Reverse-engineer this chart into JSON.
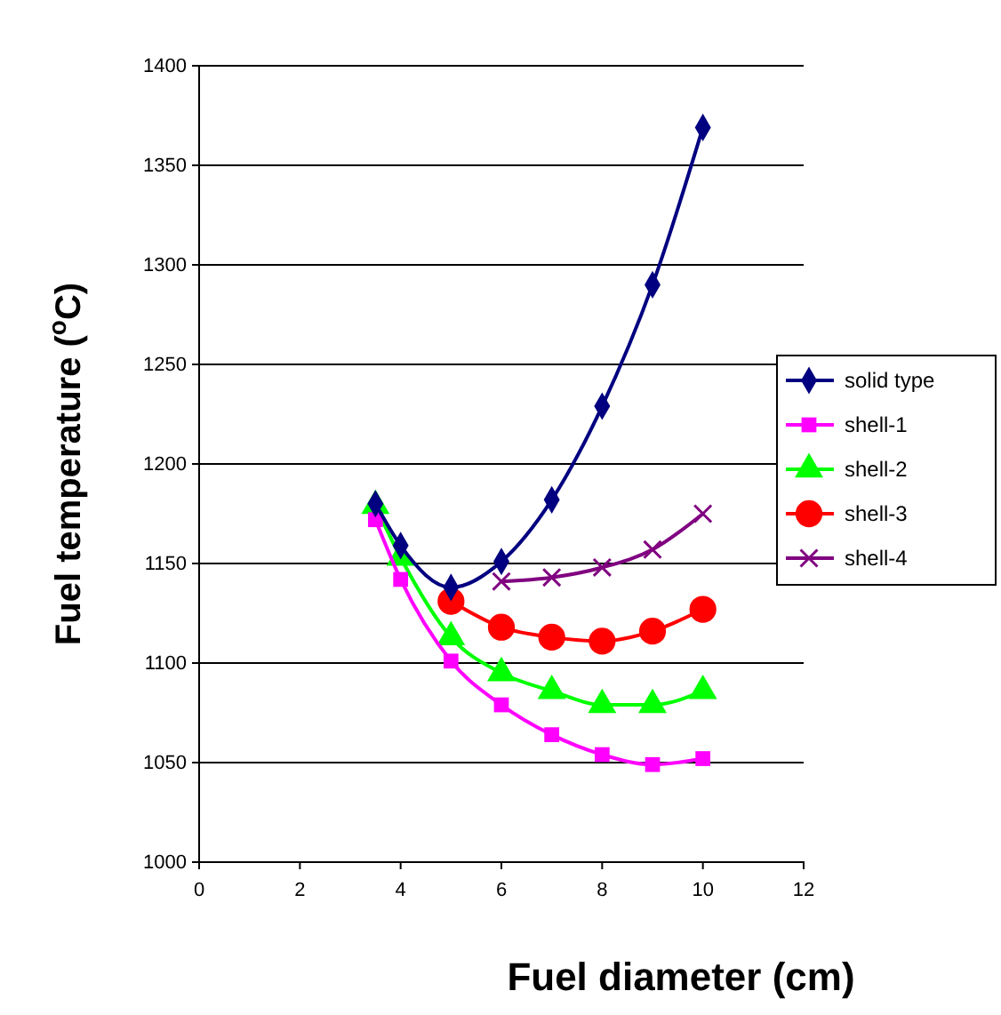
{
  "chart_data": {
    "type": "line",
    "xlabel": "Fuel diameter (cm)",
    "ylabel": "Fuel temperature ($^{o}$C)",
    "xlim": [
      0,
      12
    ],
    "xticks": [
      0,
      2,
      4,
      6,
      8,
      10,
      12
    ],
    "ylim": [
      1000,
      1400
    ],
    "yticks": [
      1000,
      1050,
      1100,
      1150,
      1200,
      1250,
      1300,
      1350,
      1400
    ],
    "grid": "y",
    "legend": "right",
    "line_style": "solid",
    "series": [
      {
        "name": "solid type",
        "color": "#000080",
        "marker": "diamond",
        "x": [
          3.5,
          4,
          5,
          6,
          7,
          8,
          9,
          10
        ],
        "values": [
          1180,
          1159,
          1138,
          1151,
          1182,
          1229,
          1290,
          1369
        ]
      },
      {
        "name": "shell-1",
        "color": "#ff00ff",
        "marker": "square",
        "x": [
          3.5,
          4,
          5,
          6,
          7,
          8,
          9,
          10
        ],
        "values": [
          1172,
          1142,
          1101,
          1079,
          1064,
          1054,
          1049,
          1052
        ]
      },
      {
        "name": "shell-2",
        "color": "#00ff00",
        "marker": "triangle",
        "x": [
          3.5,
          4,
          5,
          6,
          7,
          8,
          9,
          10
        ],
        "values": [
          1179,
          1153,
          1113,
          1095,
          1086,
          1079,
          1079,
          1086
        ]
      },
      {
        "name": "shell-3",
        "color": "#ff0000",
        "marker": "circle",
        "x": [
          5,
          6,
          7,
          8,
          9,
          10
        ],
        "values": [
          1131,
          1118,
          1113,
          1111,
          1116,
          1127
        ]
      },
      {
        "name": "shell-4",
        "color": "#800080",
        "marker": "cross",
        "x": [
          6,
          7,
          8,
          9,
          10
        ],
        "values": [
          1141,
          1143,
          1148,
          1157,
          1175
        ]
      }
    ]
  }
}
